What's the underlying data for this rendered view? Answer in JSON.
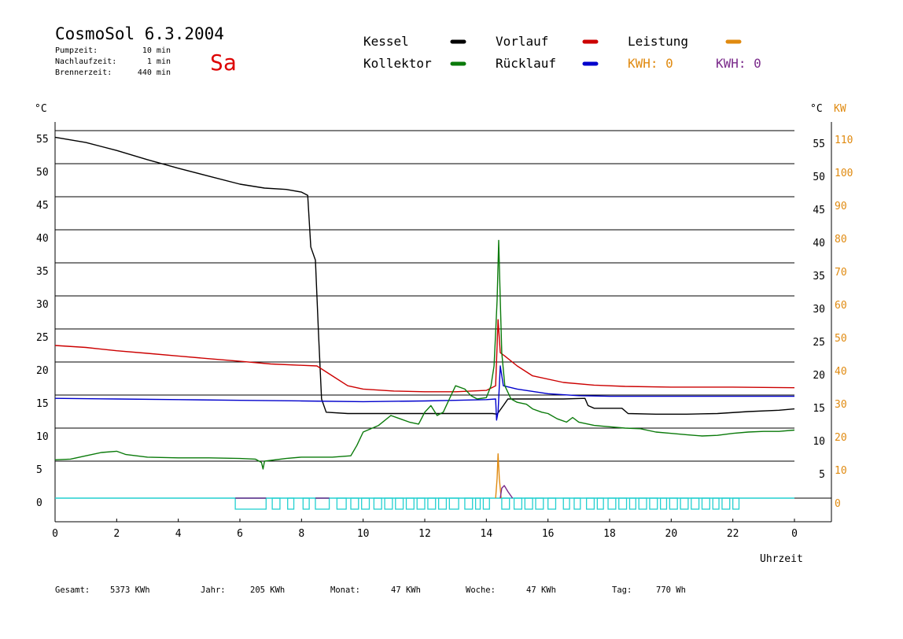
{
  "header": {
    "title": "CosmoSol 6.3.2004",
    "day": "Sa",
    "pump_label": "Pumpzeit:",
    "pump_value": "10 min",
    "after_label": "Nachlaufzeit:",
    "after_value": "1 min",
    "burner_label": "Brennerzeit:",
    "burner_value": "440 min"
  },
  "legend": {
    "kessel": "Kessel",
    "vorlauf": "Vorlauf",
    "leistung": "Leistung",
    "kollektor": "Kollektor",
    "ruecklauf": "Rücklauf",
    "kwh1": "KWH: 0",
    "kwh2": "KWH: 0"
  },
  "colors": {
    "kessel": "#000000",
    "vorlauf": "#cc0000",
    "ruecklauf": "#0000cc",
    "kollektor": "#0a7a0a",
    "leistung": "#e08a10",
    "kwh2": "#7a2a8a",
    "pump": "#22d0d0"
  },
  "footer": {
    "gesamt_label": "Gesamt:",
    "gesamt_value": "5373 KWh",
    "jahr_label": "Jahr:",
    "jahr_value": "205 KWh",
    "monat_label": "Monat:",
    "monat_value": "47 KWh",
    "woche_label": "Woche:",
    "woche_value": "47 KWh",
    "tag_label": "Tag:",
    "tag_value": "770 Wh"
  },
  "chart_data": {
    "type": "line",
    "xlabel": "Uhrzeit",
    "ylabel_left": "°C",
    "ylabel_right_c": "°C",
    "ylabel_right_kw": "KW",
    "x_ticks": [
      "0",
      "2",
      "4",
      "6",
      "8",
      "10",
      "12",
      "14",
      "16",
      "18",
      "20",
      "22",
      "0"
    ],
    "x_range": [
      0,
      24
    ],
    "y_range": [
      0,
      55
    ],
    "y_ticks_left": [
      0,
      5,
      10,
      15,
      20,
      25,
      30,
      35,
      40,
      45,
      50,
      55
    ],
    "y_ticks_right_c": [
      5,
      10,
      15,
      20,
      25,
      30,
      35,
      40,
      45,
      50,
      55
    ],
    "y_ticks_right_kw": [
      0,
      10,
      20,
      30,
      40,
      50,
      60,
      70,
      80,
      90,
      100,
      110
    ],
    "grid": true,
    "series": [
      {
        "name": "Kessel",
        "color_key": "kessel",
        "points": [
          [
            0,
            54.6
          ],
          [
            1,
            53.8
          ],
          [
            2,
            52.6
          ],
          [
            3,
            51.2
          ],
          [
            4,
            49.9
          ],
          [
            5,
            48.7
          ],
          [
            6,
            47.5
          ],
          [
            6.8,
            46.9
          ],
          [
            7.5,
            46.7
          ],
          [
            8.0,
            46.3
          ],
          [
            8.2,
            45.8
          ],
          [
            8.3,
            38
          ],
          [
            8.45,
            36
          ],
          [
            8.55,
            25
          ],
          [
            8.65,
            15
          ],
          [
            8.8,
            13
          ],
          [
            9.5,
            12.8
          ],
          [
            12,
            12.8
          ],
          [
            14.2,
            12.8
          ],
          [
            14.35,
            12.7
          ],
          [
            14.55,
            14
          ],
          [
            14.7,
            15
          ],
          [
            15.5,
            15
          ],
          [
            16.5,
            15
          ],
          [
            17.2,
            15.1
          ],
          [
            17.3,
            14
          ],
          [
            17.5,
            13.6
          ],
          [
            18.4,
            13.6
          ],
          [
            18.6,
            12.8
          ],
          [
            19.5,
            12.7
          ],
          [
            20.5,
            12.7
          ],
          [
            21.5,
            12.8
          ],
          [
            22.5,
            13.1
          ],
          [
            23.5,
            13.3
          ],
          [
            24,
            13.5
          ]
        ]
      },
      {
        "name": "Vorlauf",
        "color_key": "vorlauf",
        "points": [
          [
            0,
            23.1
          ],
          [
            1,
            22.8
          ],
          [
            2,
            22.3
          ],
          [
            3,
            21.9
          ],
          [
            4,
            21.5
          ],
          [
            5,
            21.1
          ],
          [
            6,
            20.7
          ],
          [
            7,
            20.3
          ],
          [
            8,
            20.1
          ],
          [
            8.5,
            20
          ],
          [
            9,
            18.5
          ],
          [
            9.5,
            17
          ],
          [
            10,
            16.5
          ],
          [
            11,
            16.2
          ],
          [
            12,
            16.1
          ],
          [
            13,
            16.1
          ],
          [
            14,
            16.3
          ],
          [
            14.3,
            17
          ],
          [
            14.38,
            27
          ],
          [
            14.45,
            22
          ],
          [
            14.6,
            21.5
          ],
          [
            15,
            20
          ],
          [
            15.5,
            18.5
          ],
          [
            16.5,
            17.5
          ],
          [
            17.5,
            17.1
          ],
          [
            18.5,
            16.9
          ],
          [
            20,
            16.8
          ],
          [
            22,
            16.8
          ],
          [
            24,
            16.7
          ]
        ]
      },
      {
        "name": "Rücklauf",
        "color_key": "ruecklauf",
        "points": [
          [
            0,
            15.1
          ],
          [
            2,
            15.0
          ],
          [
            4,
            14.9
          ],
          [
            6,
            14.8
          ],
          [
            8,
            14.7
          ],
          [
            10,
            14.6
          ],
          [
            12,
            14.7
          ],
          [
            13,
            14.8
          ],
          [
            14,
            14.9
          ],
          [
            14.3,
            15
          ],
          [
            14.33,
            11.8
          ],
          [
            14.38,
            13
          ],
          [
            14.45,
            20
          ],
          [
            14.55,
            17
          ],
          [
            15,
            16.5
          ],
          [
            16,
            15.8
          ],
          [
            17,
            15.5
          ],
          [
            18,
            15.4
          ],
          [
            20,
            15.4
          ],
          [
            22,
            15.4
          ],
          [
            24,
            15.4
          ]
        ]
      },
      {
        "name": "Kollektor",
        "color_key": "kollektor",
        "points": [
          [
            0,
            5.8
          ],
          [
            0.5,
            5.9
          ],
          [
            1,
            6.4
          ],
          [
            1.5,
            6.9
          ],
          [
            2,
            7.1
          ],
          [
            2.3,
            6.6
          ],
          [
            3,
            6.2
          ],
          [
            4,
            6.1
          ],
          [
            5,
            6.1
          ],
          [
            6,
            6.0
          ],
          [
            6.5,
            5.9
          ],
          [
            6.7,
            5.4
          ],
          [
            6.75,
            4.4
          ],
          [
            6.8,
            5.6
          ],
          [
            7.5,
            6.0
          ],
          [
            8,
            6.2
          ],
          [
            9,
            6.2
          ],
          [
            9.6,
            6.4
          ],
          [
            9.8,
            8
          ],
          [
            10,
            10
          ],
          [
            10.5,
            11
          ],
          [
            10.9,
            12.5
          ],
          [
            11.2,
            12
          ],
          [
            11.5,
            11.5
          ],
          [
            11.8,
            11.2
          ],
          [
            12,
            13
          ],
          [
            12.2,
            14
          ],
          [
            12.4,
            12.5
          ],
          [
            12.6,
            13
          ],
          [
            12.8,
            15
          ],
          [
            13,
            17
          ],
          [
            13.3,
            16.5
          ],
          [
            13.5,
            15.5
          ],
          [
            13.7,
            15
          ],
          [
            14,
            15.2
          ],
          [
            14.15,
            17
          ],
          [
            14.25,
            20
          ],
          [
            14.3,
            25
          ],
          [
            14.35,
            30
          ],
          [
            14.4,
            39
          ],
          [
            14.45,
            30
          ],
          [
            14.5,
            22
          ],
          [
            14.6,
            17
          ],
          [
            14.8,
            15
          ],
          [
            15,
            14.5
          ],
          [
            15.3,
            14.2
          ],
          [
            15.5,
            13.5
          ],
          [
            15.8,
            13
          ],
          [
            16,
            12.8
          ],
          [
            16.3,
            12
          ],
          [
            16.6,
            11.5
          ],
          [
            16.8,
            12.2
          ],
          [
            17,
            11.5
          ],
          [
            17.5,
            11
          ],
          [
            18,
            10.8
          ],
          [
            18.5,
            10.6
          ],
          [
            19,
            10.5
          ],
          [
            19.5,
            10
          ],
          [
            20,
            9.8
          ],
          [
            20.5,
            9.6
          ],
          [
            21,
            9.4
          ],
          [
            21.5,
            9.5
          ],
          [
            22,
            9.8
          ],
          [
            22.5,
            10
          ],
          [
            23,
            10.1
          ],
          [
            23.5,
            10.1
          ],
          [
            24,
            10.3
          ]
        ]
      },
      {
        "name": "Leistung",
        "color_key": "leistung",
        "points": [
          [
            14.3,
            0
          ],
          [
            14.35,
            3
          ],
          [
            14.38,
            6.7
          ],
          [
            14.42,
            3
          ],
          [
            14.48,
            0
          ]
        ]
      },
      {
        "name": "KWH",
        "color_key": "kwh2",
        "points": [
          [
            14.45,
            0
          ],
          [
            14.5,
            1.5
          ],
          [
            14.58,
            1.9
          ],
          [
            14.7,
            1
          ],
          [
            14.85,
            0
          ]
        ]
      }
    ],
    "pump_intervals": [
      [
        5.85,
        6.85
      ],
      [
        7.05,
        7.3
      ],
      [
        7.55,
        7.75
      ],
      [
        8.05,
        8.25
      ],
      [
        8.45,
        8.9
      ],
      [
        9.15,
        9.45
      ],
      [
        9.6,
        9.85
      ],
      [
        9.95,
        10.2
      ],
      [
        10.35,
        10.6
      ],
      [
        10.7,
        10.95
      ],
      [
        11.05,
        11.3
      ],
      [
        11.4,
        11.65
      ],
      [
        11.75,
        12.0
      ],
      [
        12.1,
        12.35
      ],
      [
        12.45,
        12.7
      ],
      [
        12.8,
        13.1
      ],
      [
        13.3,
        13.55
      ],
      [
        13.65,
        13.8
      ],
      [
        13.9,
        14.1
      ],
      [
        14.5,
        14.75
      ],
      [
        14.9,
        15.15
      ],
      [
        15.25,
        15.5
      ],
      [
        15.6,
        15.85
      ],
      [
        16.0,
        16.25
      ],
      [
        16.5,
        16.7
      ],
      [
        16.85,
        17.05
      ],
      [
        17.25,
        17.5
      ],
      [
        17.6,
        17.8
      ],
      [
        17.95,
        18.2
      ],
      [
        18.3,
        18.55
      ],
      [
        18.65,
        18.85
      ],
      [
        18.95,
        19.2
      ],
      [
        19.3,
        19.55
      ],
      [
        19.65,
        19.85
      ],
      [
        19.95,
        20.2
      ],
      [
        20.3,
        20.55
      ],
      [
        20.65,
        20.9
      ],
      [
        21.0,
        21.25
      ],
      [
        21.35,
        21.55
      ],
      [
        21.65,
        21.9
      ],
      [
        22.0,
        22.2
      ]
    ],
    "burner_intervals": [
      [
        5.85,
        6.85
      ],
      [
        8.45,
        8.9
      ]
    ]
  }
}
